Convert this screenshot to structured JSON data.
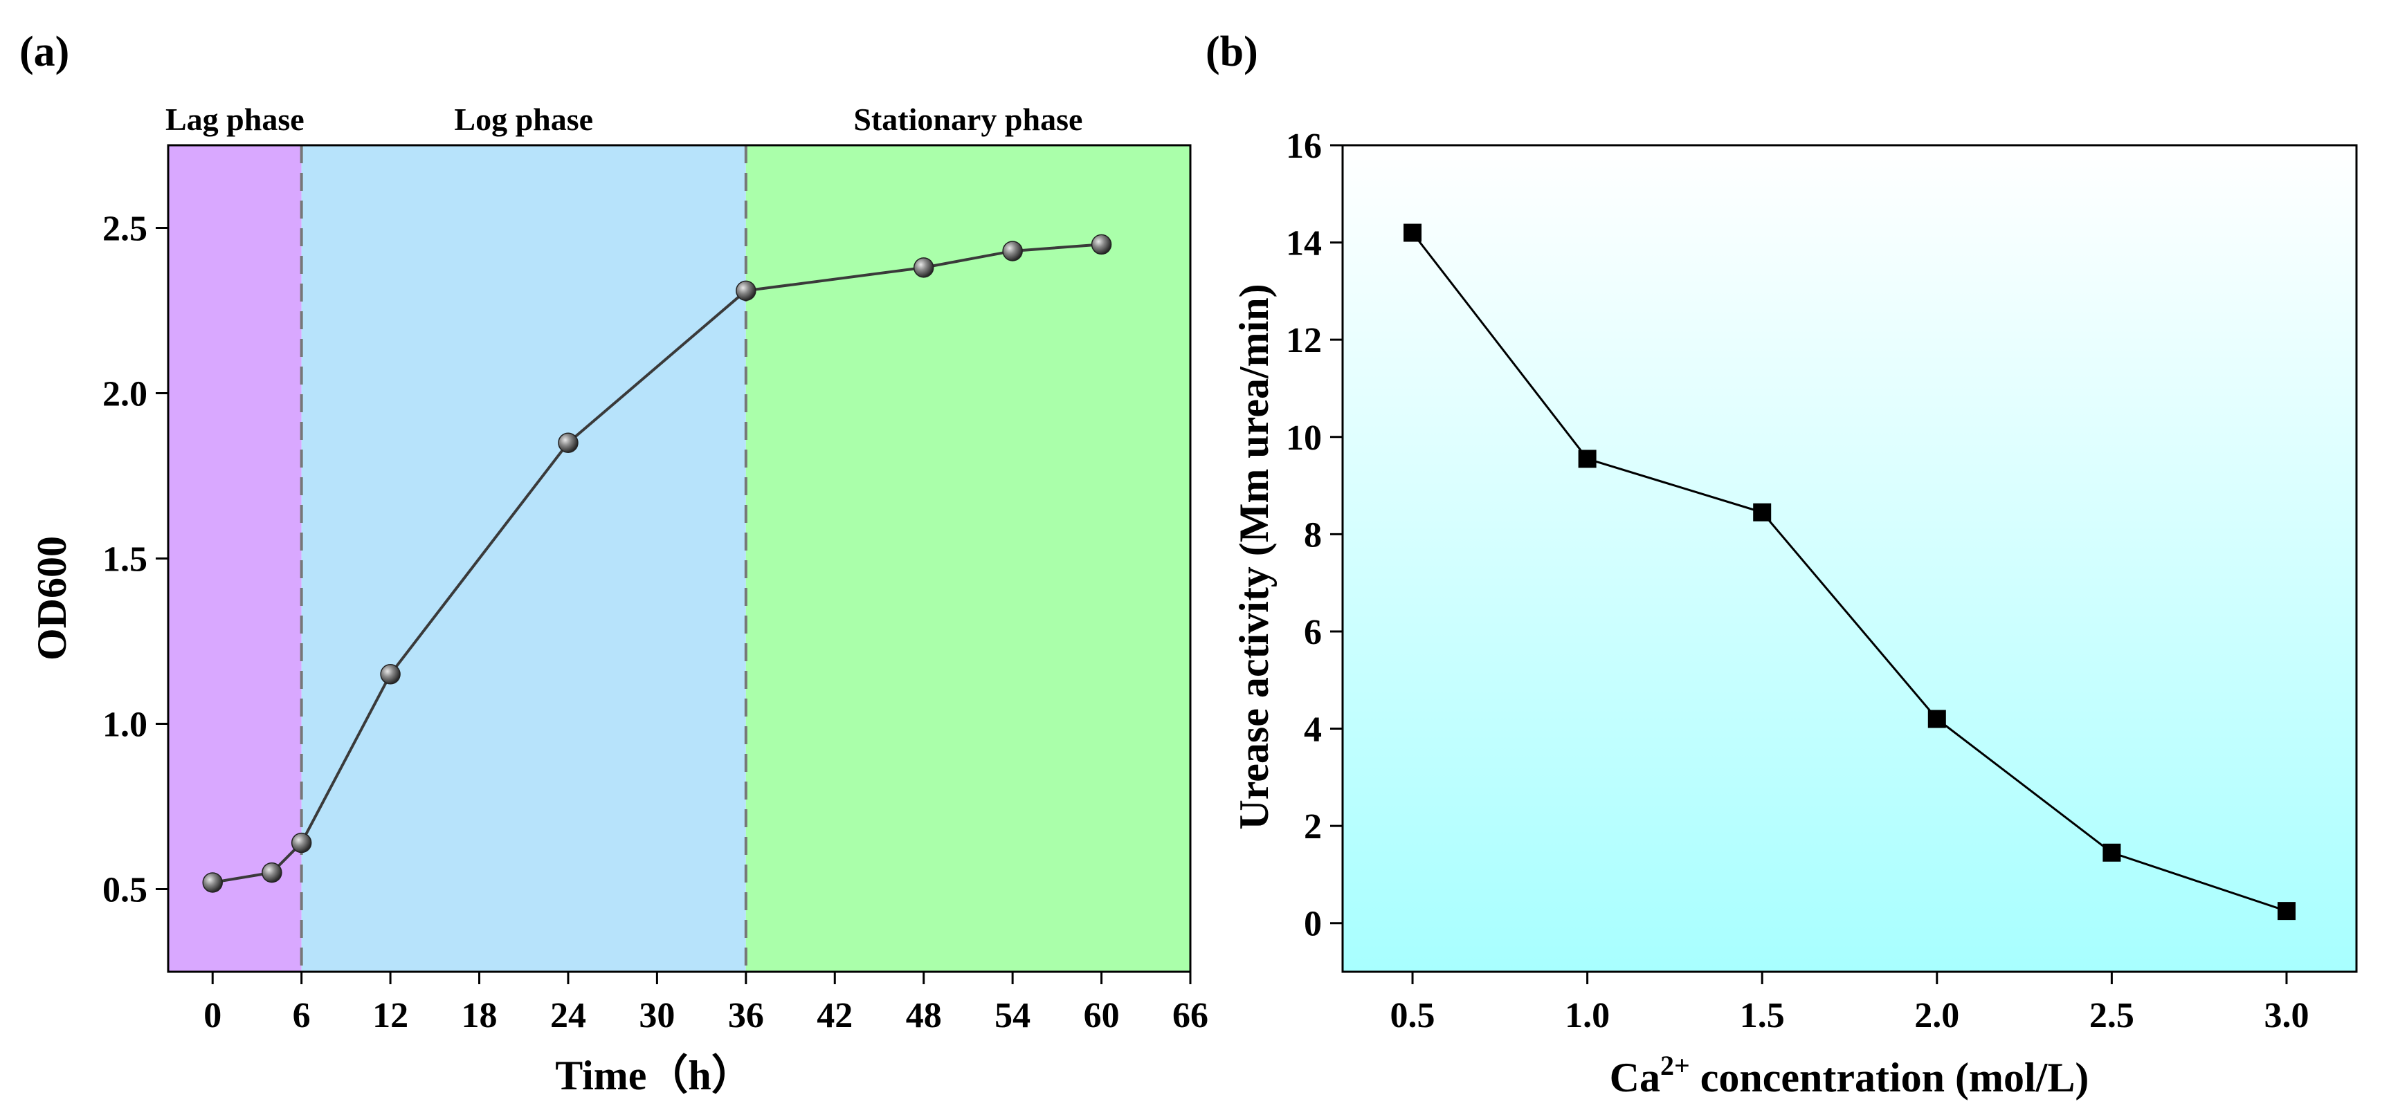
{
  "chart_data": [
    {
      "panel": "(a)",
      "type": "line",
      "xlabel": "Time（h）",
      "ylabel": "OD600",
      "xlim": [
        -3,
        66
      ],
      "ylim": [
        0.25,
        2.75
      ],
      "xticks": [
        0,
        6,
        12,
        18,
        24,
        30,
        36,
        42,
        48,
        54,
        60,
        66
      ],
      "yticks": [
        0.5,
        1.0,
        1.5,
        2.0,
        2.5
      ],
      "ytick_labels": [
        "0.5",
        "1.0",
        "1.5",
        "2.0",
        "2.5"
      ],
      "grid": false,
      "phases": [
        {
          "name": "Lag phase",
          "start": -3,
          "end": 6,
          "color": "#d9a8ff"
        },
        {
          "name": "Log phase",
          "start": 6,
          "end": 36,
          "color": "#b7e3fb"
        },
        {
          "name": "Stationary phase",
          "start": 36,
          "end": 66,
          "color": "#aaffaa"
        }
      ],
      "boundaries": [
        6,
        36
      ],
      "series": [
        {
          "name": "OD600",
          "x": [
            0,
            4,
            6,
            12,
            24,
            36,
            48,
            54,
            60
          ],
          "values": [
            0.52,
            0.55,
            0.64,
            1.15,
            1.85,
            2.31,
            2.38,
            2.43,
            2.45
          ]
        }
      ]
    },
    {
      "panel": "(b)",
      "type": "line",
      "xlabel_main": "Ca",
      "xlabel_sup": "2+",
      "xlabel_rest": " concentration (mol/L)",
      "ylabel": "Urease activity (Mm urea/min)",
      "xlim": [
        0.3,
        3.2
      ],
      "ylim": [
        -1,
        16
      ],
      "xticks": [
        0.5,
        1.0,
        1.5,
        2.0,
        2.5,
        3.0
      ],
      "xtick_labels": [
        "0.5",
        "1.0",
        "1.5",
        "2.0",
        "2.5",
        "3.0"
      ],
      "yticks": [
        0,
        2,
        4,
        6,
        8,
        10,
        12,
        14,
        16
      ],
      "grid": false,
      "background_gradient": [
        "#ffffff",
        "#a8ffff"
      ],
      "series": [
        {
          "name": "Urease activity",
          "x": [
            0.5,
            1.0,
            1.5,
            2.0,
            2.5,
            3.0
          ],
          "values": [
            14.2,
            9.55,
            8.45,
            4.2,
            1.45,
            0.25
          ]
        }
      ]
    }
  ]
}
